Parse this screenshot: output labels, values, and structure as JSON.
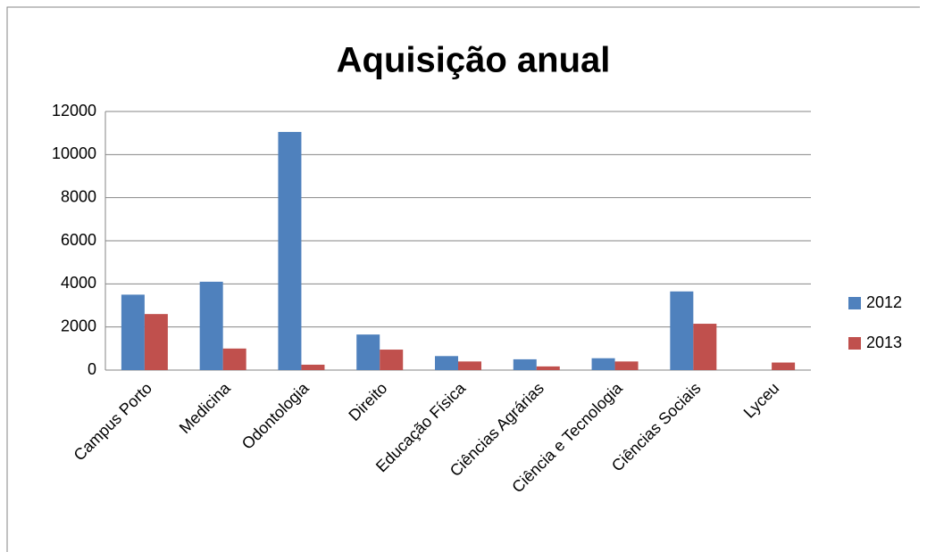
{
  "chart_data": {
    "type": "bar",
    "title": "Aquisição anual",
    "categories": [
      "Campus Porto",
      "Medicina",
      "Odontologia",
      "Direito",
      "Educação Física",
      "Ciências Agrárias",
      "Ciência e Tecnologia",
      "Ciências Sociais",
      "Lyceu"
    ],
    "series": [
      {
        "name": "2012",
        "color": "#4f81bd",
        "values": [
          3500,
          4100,
          11050,
          1650,
          650,
          500,
          550,
          3650,
          0
        ]
      },
      {
        "name": "2013",
        "color": "#c0504d",
        "values": [
          2600,
          1000,
          250,
          950,
          400,
          170,
          400,
          2150,
          350
        ]
      }
    ],
    "ylim": [
      0,
      12000
    ],
    "yticks": [
      0,
      2000,
      4000,
      6000,
      8000,
      10000,
      12000
    ],
    "grid": true,
    "legend": "right"
  }
}
